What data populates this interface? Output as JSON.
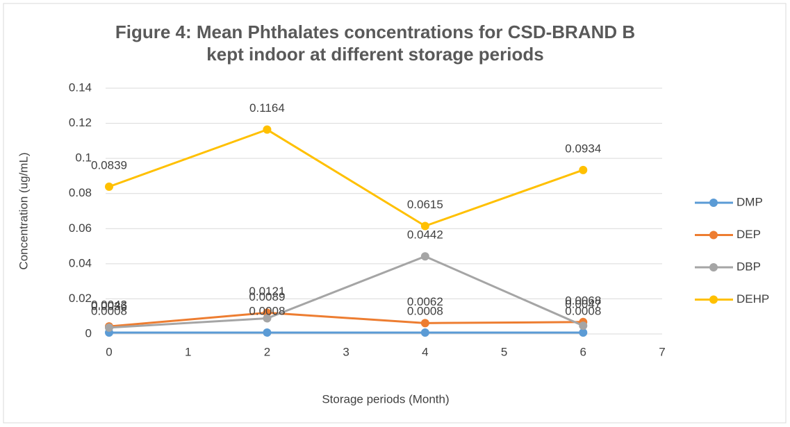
{
  "chart_data": {
    "type": "line",
    "title": "Figure 4: Mean Phthalates concentrations for CSD-BRAND B kept indoor at different storage periods",
    "xlabel": "Storage periods (Month)",
    "ylabel": "Concentration (ug/mL)",
    "x": [
      0,
      2,
      4,
      6
    ],
    "series": [
      {
        "name": "DMP",
        "color": "#5b9bd5",
        "values": [
          0.0008,
          0.0008,
          0.0008,
          0.0008
        ]
      },
      {
        "name": "DEP",
        "color": "#ed7d31",
        "values": [
          0.0043,
          0.0121,
          0.0062,
          0.0068
        ]
      },
      {
        "name": "DBP",
        "color": "#a5a5a5",
        "values": [
          0.0036,
          0.0089,
          0.0442,
          0.0047
        ]
      },
      {
        "name": "DEHP",
        "color": "#ffc000",
        "values": [
          0.0839,
          0.1164,
          0.0615,
          0.0934
        ]
      }
    ],
    "xlim": [
      0,
      7
    ],
    "xticks": [
      0,
      1,
      2,
      3,
      4,
      5,
      6,
      7
    ],
    "ylim": [
      0,
      0.14
    ],
    "yticks": [
      0,
      0.02,
      0.04,
      0.06,
      0.08,
      0.1,
      0.12,
      0.14
    ],
    "grid": true,
    "legend": "right"
  }
}
